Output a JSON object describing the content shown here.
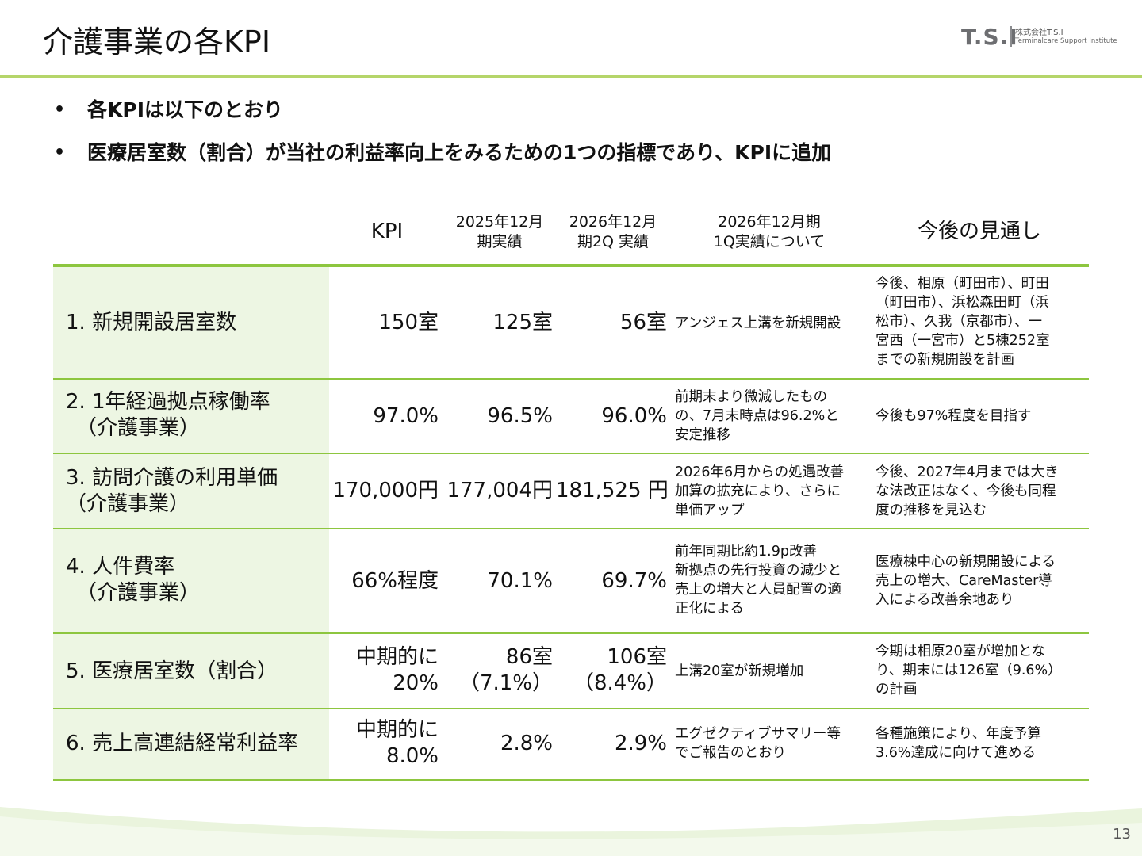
{
  "title": "介護事業の各KPI",
  "logo": {
    "mark": "T.S.I",
    "company": "株式会社T.S.I",
    "subtitle": "Terminalcare Support Institute"
  },
  "bullets": [
    "各KPIは以下のとおり",
    "医療居室数（割合）が当社の利益率向上をみるための1つの指標であり、KPIに追加"
  ],
  "table": {
    "headers": {
      "kpi": "KPI",
      "fy2025": "2025年12月\n期実績",
      "fy2026_2q": "2026年12月\n期2Q 実績",
      "q1_comment": "2026年12月期\n1Q実績について",
      "outlook": "今後の見通し"
    },
    "rows": [
      {
        "label": "1. 新規開設居室数",
        "kpi": "150室",
        "fy2025": "125室",
        "fy2026_2q": "56室",
        "comment": "アンジェス上溝を新規開設",
        "outlook": "今後、相原（町田市）、町田\n（町田市）、浜松森田町（浜\n松市）、久我（京都市）、一\n宮西（一宮市）と5棟252室\nまでの新規開設を計画"
      },
      {
        "label": "2. 1年経過拠点稼働率\n　（介護事業）",
        "kpi": "97.0%",
        "fy2025": "96.5%",
        "fy2026_2q": "96.0%",
        "comment": "前期末より微減したもの\nの、7月末時点は96.2%と\n安定推移",
        "outlook": "今後も97%程度を目指す"
      },
      {
        "label": "3. 訪問介護の利用単価\n（介護事業）",
        "kpi": "170,000円",
        "fy2025": "177,004円",
        "fy2026_2q": "181,525 円",
        "comment": "2026年6月からの処遇改善\n加算の拡充により、さらに\n単価アップ",
        "outlook": "今後、2027年4月までは大き\nな法改正はなく、今後も同程\n度の推移を見込む"
      },
      {
        "label": "4. 人件費率\n　（介護事業）",
        "kpi": "66%程度",
        "fy2025": "70.1%",
        "fy2026_2q": "69.7%",
        "comment": "前年同期比約1.9p改善\n新拠点の先行投資の減少と\n売上の増大と人員配置の適\n正化による",
        "outlook": "医療棟中心の新規開設による\n売上の増大、CareMaster導\n入による改善余地あり"
      },
      {
        "label": "5. 医療居室数（割合）",
        "kpi": "中期的に\n20%",
        "fy2025": "86室\n（7.1%）",
        "fy2026_2q": "106室\n（8.4%）",
        "comment": "上溝20室が新規増加",
        "outlook": "今期は相原20室が増加とな\nり、期末には126室（9.6%）\nの計画"
      },
      {
        "label": "6. 売上高連結経常利益率",
        "kpi": "中期的に\n8.0%",
        "fy2025": "2.8%",
        "fy2026_2q": "2.9%",
        "comment": "エグゼクティブサマリー等\nでご報告のとおり",
        "outlook": "各種施策により、年度予算\n3.6%達成に向けて進める"
      }
    ]
  },
  "page_number": "13",
  "colors": {
    "accent_green": "#8dc63f",
    "label_bg": "#edf6e3",
    "header_rule": "#b5d56a"
  }
}
